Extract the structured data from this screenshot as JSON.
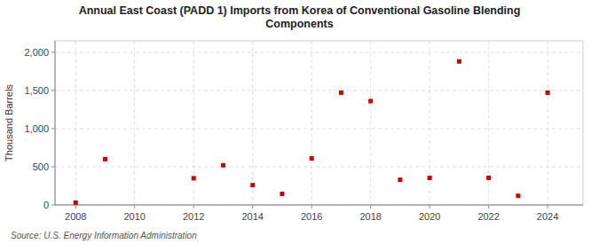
{
  "chart_data": {
    "type": "scatter",
    "title": "Annual East Coast (PADD 1) Imports from Korea of Conventional Gasoline Blending\nComponents",
    "y_label": "Thousand Barrels",
    "source": "Source: U.S. Energy Information Administration",
    "x": [
      2008,
      2009,
      2012,
      2013,
      2014,
      2015,
      2016,
      2017,
      2018,
      2019,
      2020,
      2021,
      2022,
      2023,
      2024
    ],
    "values": [
      30,
      600,
      350,
      520,
      260,
      145,
      610,
      1470,
      1360,
      330,
      355,
      1880,
      355,
      120,
      1470
    ],
    "color": "#cc0000",
    "marker": "square",
    "xlim": [
      2007.3,
      2025.2
    ],
    "ylim": [
      0,
      2150
    ],
    "xticks": [
      2008,
      2010,
      2012,
      2014,
      2016,
      2018,
      2020,
      2022,
      2024
    ],
    "yticks": [
      0,
      500,
      {
        "value": 1000,
        "label": "1,000"
      },
      {
        "value": 1500,
        "label": "1,500"
      },
      {
        "value": 2000,
        "label": "2,000"
      }
    ],
    "grid": true
  }
}
